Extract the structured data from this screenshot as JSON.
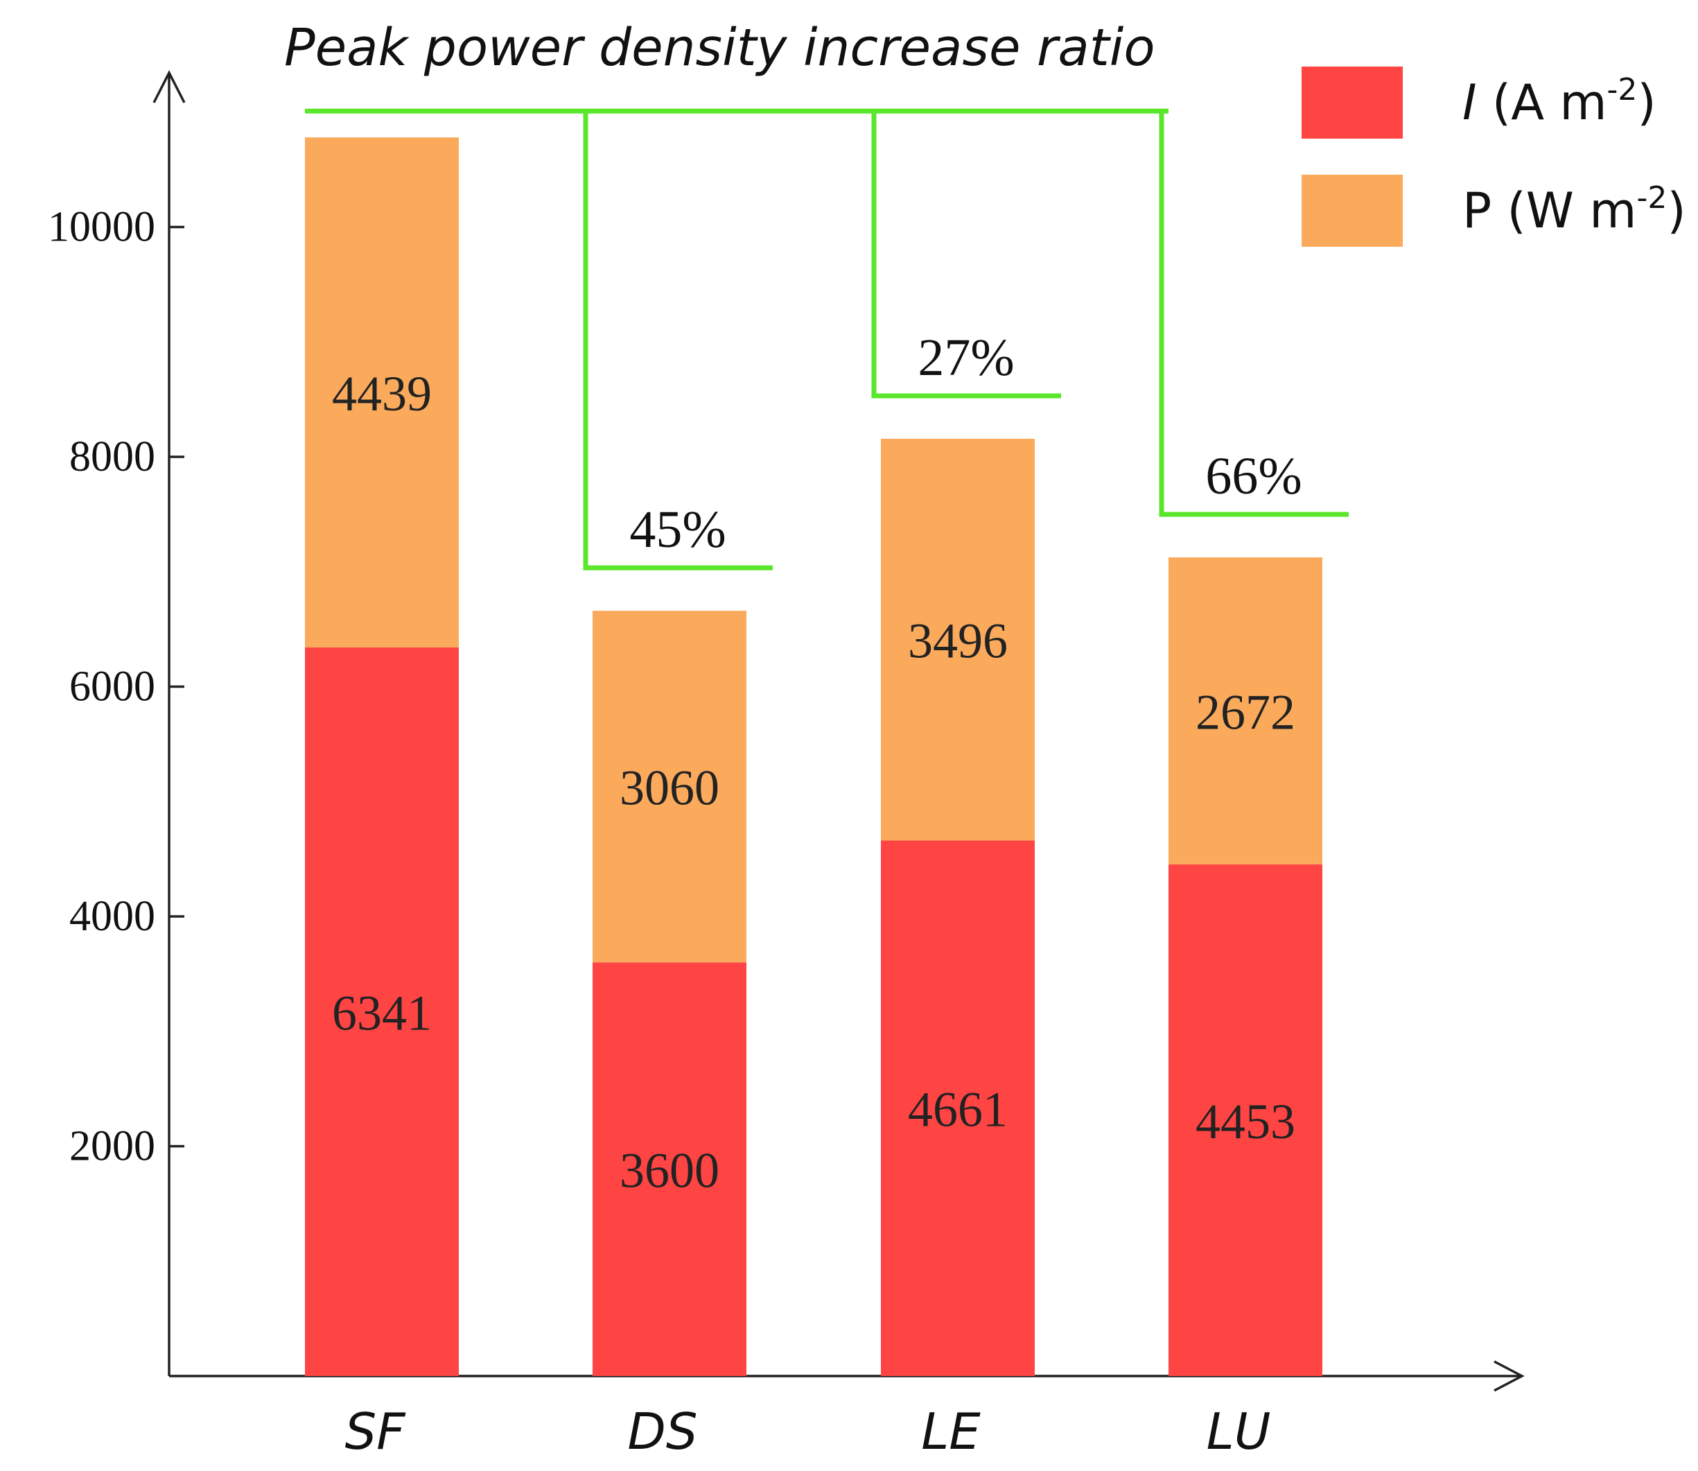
{
  "chart_data": {
    "type": "bar",
    "stacked": true,
    "title": "Peak power density increase ratio",
    "categories": [
      "SF",
      "DS",
      "LE",
      "LU"
    ],
    "series": [
      {
        "name": "I",
        "unit_prefix": "(A m",
        "unit_exp": "-2",
        "unit_suffix": ")",
        "italic_name": true,
        "color": "#FF4444",
        "values": [
          6341,
          3600,
          4661,
          4453
        ]
      },
      {
        "name": "P",
        "unit_prefix": "(W m",
        "unit_exp": "-2",
        "unit_suffix": ")",
        "italic_name": false,
        "color": "#FBAA5C",
        "values": [
          4439,
          3060,
          3496,
          2672
        ]
      }
    ],
    "increase_ratios": [
      {
        "category": "DS",
        "label": "45%"
      },
      {
        "category": "LE",
        "label": "27%"
      },
      {
        "category": "LU",
        "label": "66%"
      }
    ],
    "bracket_color": "#5AE62A",
    "yticks": [
      2000,
      4000,
      6000,
      8000,
      10000
    ],
    "ylim": [
      0,
      11000
    ],
    "xlabel": "",
    "ylabel": "",
    "grid": false,
    "legend_position": "top-right"
  }
}
